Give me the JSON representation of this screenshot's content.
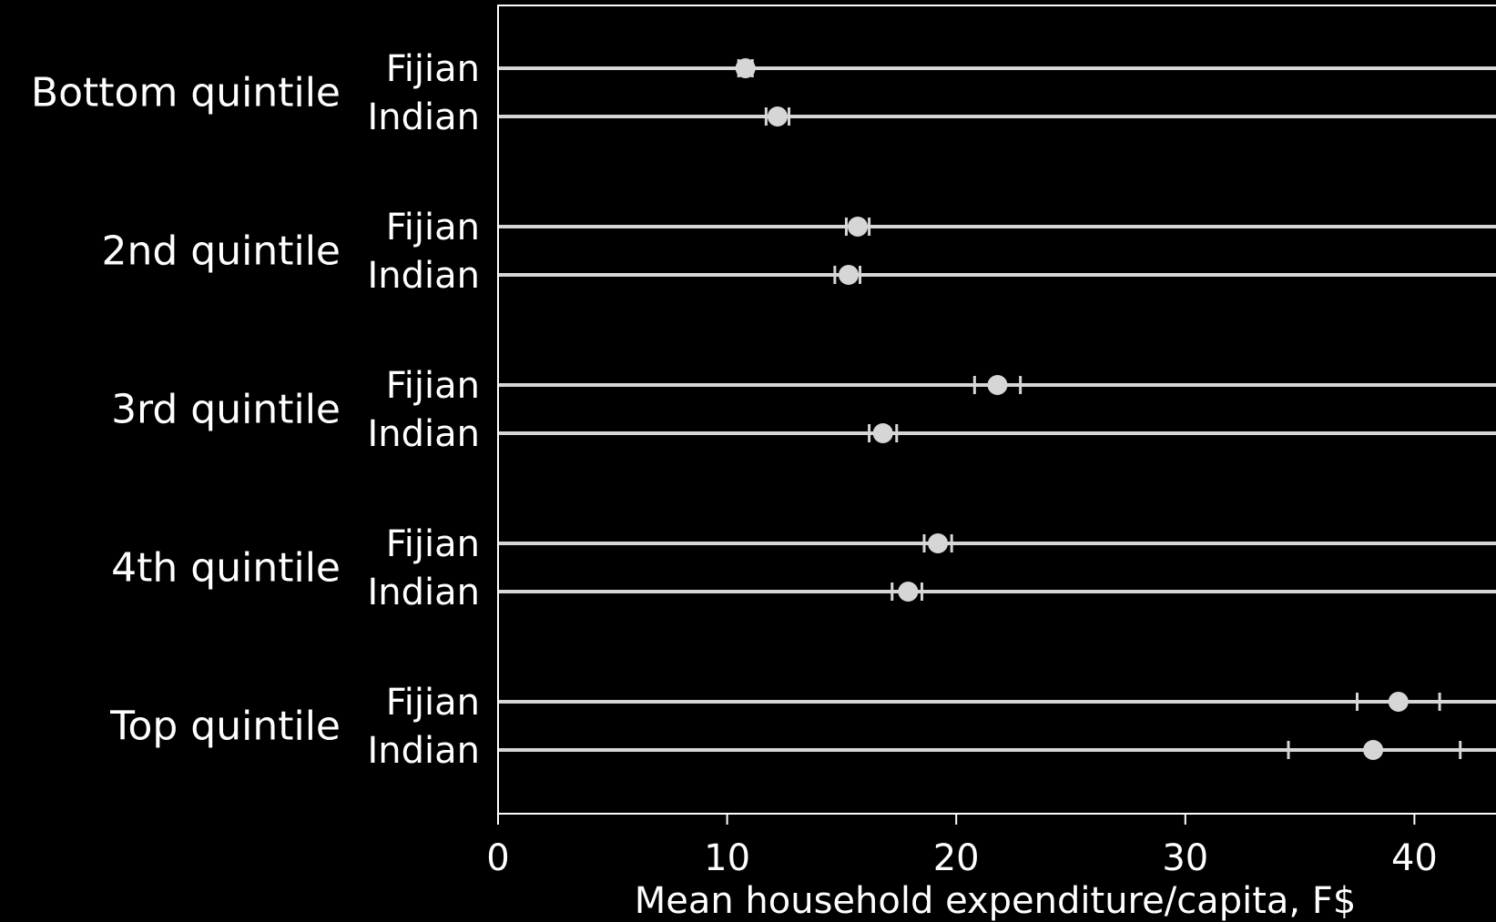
{
  "chart_data": {
    "type": "dot-plot",
    "xlabel": "Mean household expenditure/capita, F$",
    "ylabel": "",
    "xlim": [
      0,
      43.5
    ],
    "xticks": [
      0,
      10,
      20,
      30,
      40
    ],
    "grid": false,
    "legend": "none",
    "colors": {
      "background": "#000000",
      "marks": "#d6d6d6",
      "text": "#ffffff"
    },
    "groups": [
      {
        "label": "Bottom quintile",
        "rows": [
          {
            "label": "Fijian",
            "mean": 10.8,
            "ci": [
              10.5,
              11.1
            ]
          },
          {
            "label": "Indian",
            "mean": 12.2,
            "ci": [
              11.7,
              12.7
            ]
          }
        ]
      },
      {
        "label": "2nd quintile",
        "rows": [
          {
            "label": "Fijian",
            "mean": 15.7,
            "ci": [
              15.2,
              16.2
            ]
          },
          {
            "label": "Indian",
            "mean": 15.3,
            "ci": [
              14.7,
              15.8
            ]
          }
        ]
      },
      {
        "label": "3rd quintile",
        "rows": [
          {
            "label": "Fijian",
            "mean": 21.8,
            "ci": [
              20.8,
              22.8
            ]
          },
          {
            "label": "Indian",
            "mean": 16.8,
            "ci": [
              16.2,
              17.4
            ]
          }
        ]
      },
      {
        "label": "4th quintile",
        "rows": [
          {
            "label": "Fijian",
            "mean": 19.2,
            "ci": [
              18.6,
              19.8
            ]
          },
          {
            "label": "Indian",
            "mean": 17.9,
            "ci": [
              17.2,
              18.5
            ]
          }
        ]
      },
      {
        "label": "Top quintile",
        "rows": [
          {
            "label": "Fijian",
            "mean": 39.3,
            "ci": [
              37.5,
              41.1
            ]
          },
          {
            "label": "Indian",
            "mean": 38.2,
            "ci": [
              34.5,
              42.0
            ]
          }
        ]
      }
    ]
  }
}
